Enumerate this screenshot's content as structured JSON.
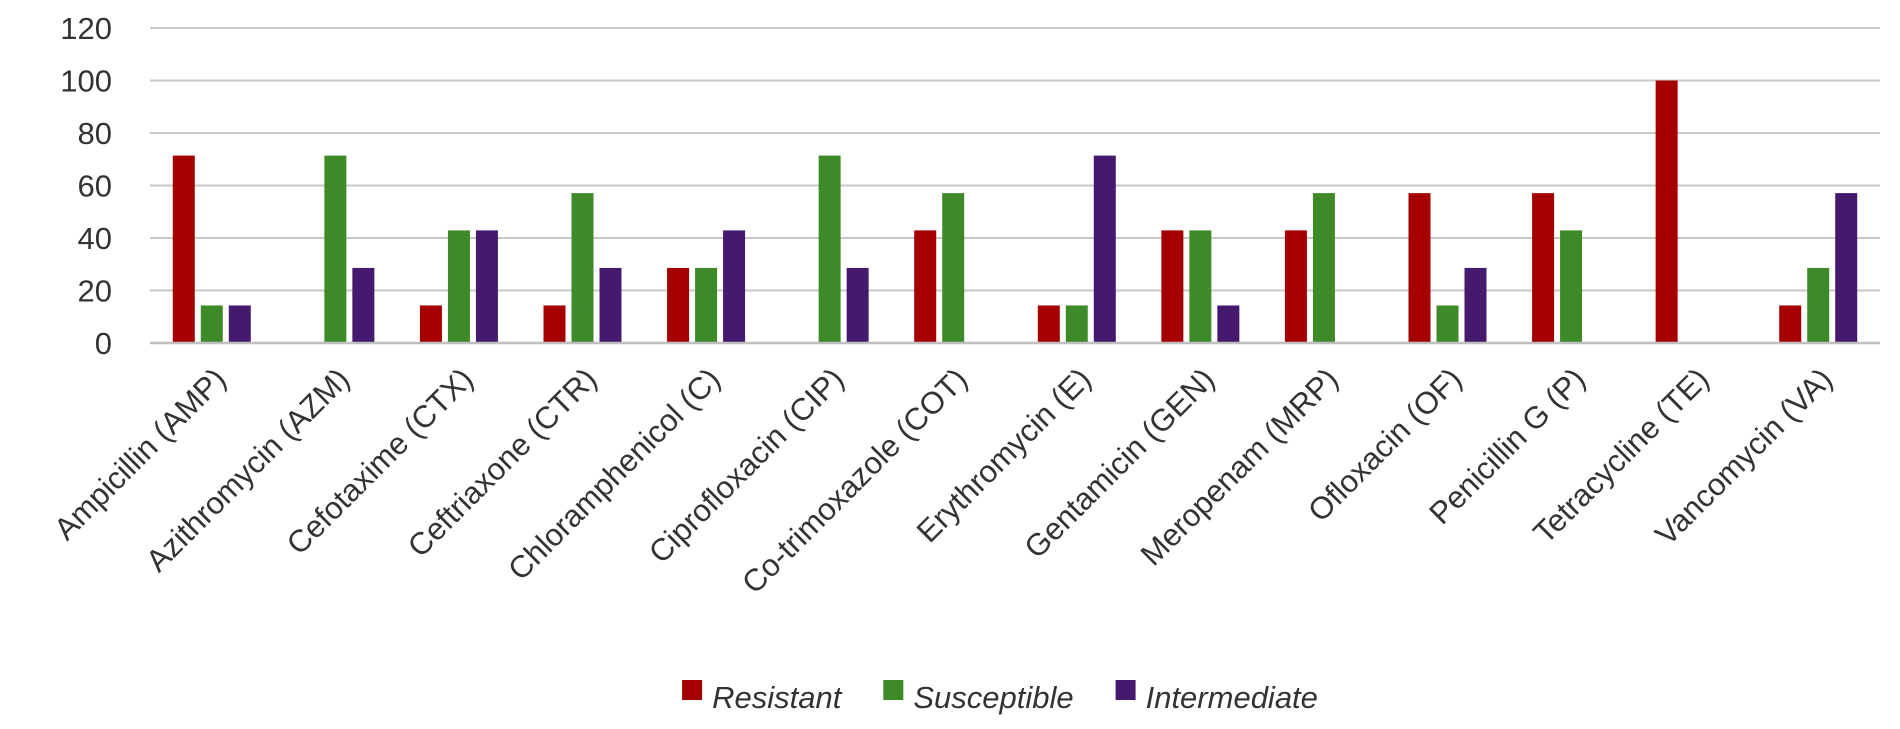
{
  "chart_data": {
    "type": "bar",
    "title": "",
    "xlabel": "",
    "ylabel": "",
    "ylim": [
      0,
      120
    ],
    "yticks": [
      0,
      20,
      40,
      60,
      80,
      100,
      120
    ],
    "grid": true,
    "legend_position": "bottom",
    "categories": [
      "Ampicillin (AMP)",
      "Azithromycin (AZM)",
      "Cefotaxime (CTX)",
      "Ceftriaxone (CTR)",
      "Chloramphenicol (C)",
      "Ciprofloxacin (CIP)",
      "Co-trimoxazole (COT)",
      "Erythromycin (E)",
      "Gentamicin (GEN)",
      "Meropenam (MRP)",
      "Ofloxacin (OF)",
      "Penicillin G (P)",
      "Tetracycline (TE)",
      "Vancomycin (VA)"
    ],
    "series": [
      {
        "name": "Resistant",
        "color": "#A50000",
        "values": [
          71.4,
          0,
          14.3,
          14.3,
          28.6,
          0,
          42.9,
          14.3,
          42.9,
          42.9,
          57.1,
          57.1,
          100,
          14.3
        ]
      },
      {
        "name": "Susceptible",
        "color": "#3F8A28",
        "values": [
          14.3,
          71.4,
          42.9,
          57.1,
          28.6,
          71.4,
          57.1,
          14.3,
          42.9,
          57.1,
          14.3,
          42.9,
          0,
          28.6
        ]
      },
      {
        "name": "Intermediate",
        "color": "#44196E",
        "values": [
          14.3,
          28.6,
          42.9,
          28.6,
          42.9,
          28.6,
          0,
          71.4,
          14.3,
          0,
          28.6,
          0,
          0,
          57.1
        ]
      }
    ]
  }
}
